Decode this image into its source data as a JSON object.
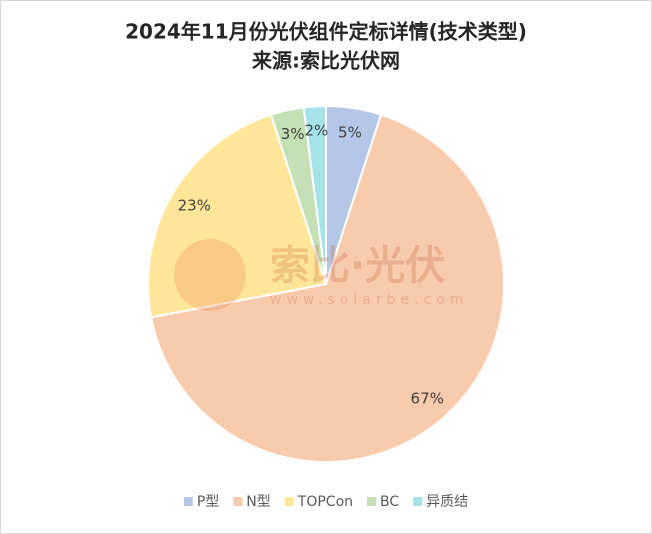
{
  "chart_data": {
    "type": "pie",
    "title": "2024年11月份光伏组件定标详情(技术类型)",
    "subtitle": "来源:索比光伏网",
    "categories": [
      "P型",
      "N型",
      "TOPCon",
      "BC",
      "异质结"
    ],
    "values": [
      5,
      67,
      23,
      3,
      2
    ],
    "value_labels": [
      "5%",
      "67%",
      "23%",
      "3%",
      "2%"
    ],
    "colors": [
      "#b4c7e7",
      "#f8cbad",
      "#ffe699",
      "#c5e0b4",
      "#a6e3e9"
    ],
    "legend": "bottom",
    "watermark": {
      "text": "索比·光伏",
      "url": "www.solarbe.com"
    }
  }
}
